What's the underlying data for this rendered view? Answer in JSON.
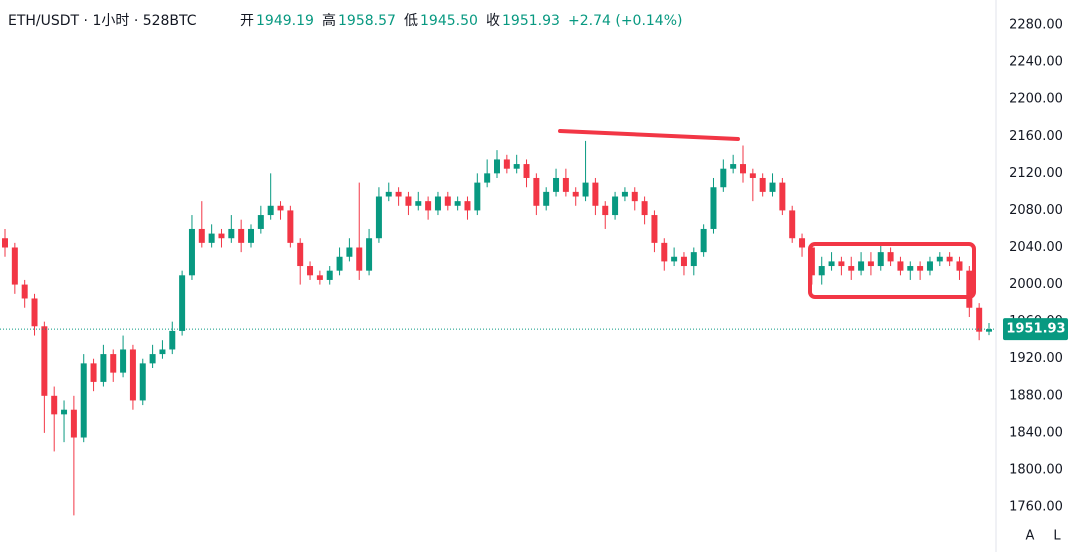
{
  "header": {
    "symbol": "ETH/USDT · 1小时 · 528BTC",
    "open_label": "开",
    "open_value": "1949.19",
    "high_label": "高",
    "high_value": "1958.57",
    "low_label": "低",
    "low_value": "1945.50",
    "close_label": "收",
    "close_value": "1951.93",
    "change": "+2.74 (+0.14%)"
  },
  "scale_buttons": [
    "A",
    "L"
  ],
  "chart_data": {
    "type": "candlestick",
    "up_color": "#089981",
    "down_color": "#f23645",
    "ylim": [
      1711.5,
      2307
    ],
    "yticks": [
      {
        "value": 2280,
        "label": "2280.00"
      },
      {
        "value": 2240,
        "label": "2240.00"
      },
      {
        "value": 2200,
        "label": "2200.00"
      },
      {
        "value": 2160,
        "label": "2160.00"
      },
      {
        "value": 2120,
        "label": "2120.00"
      },
      {
        "value": 2080,
        "label": "2080.00"
      },
      {
        "value": 2040,
        "label": "2040.00"
      },
      {
        "value": 2000,
        "label": "2000.00"
      },
      {
        "value": 1960,
        "label": "1960.00"
      },
      {
        "value": 1920,
        "label": "1920.00"
      },
      {
        "value": 1880,
        "label": "1880.00"
      },
      {
        "value": 1840,
        "label": "1840.00"
      },
      {
        "value": 1800,
        "label": "1800.00"
      },
      {
        "value": 1760,
        "label": "1760.00"
      }
    ],
    "grid": false,
    "open": [
      2050,
      2040,
      2000,
      1985,
      1955,
      1880,
      1860,
      1865,
      1835,
      1915,
      1895,
      1925,
      1905,
      1930,
      1875,
      1915,
      1925,
      1930,
      1950,
      2010,
      2060,
      2045,
      2055,
      2050,
      2060,
      2045,
      2060,
      2075,
      2085,
      2080,
      2045,
      2020,
      2010,
      2005,
      2015,
      2030,
      2040,
      2015,
      2050,
      2095,
      2100,
      2095,
      2085,
      2090,
      2080,
      2095,
      2085,
      2090,
      2080,
      2110,
      2120,
      2135,
      2125,
      2130,
      2115,
      2085,
      2100,
      2115,
      2100,
      2095,
      2110,
      2085,
      2075,
      2095,
      2100,
      2090,
      2075,
      2045,
      2025,
      2030,
      2020,
      2035,
      2060,
      2105,
      2125,
      2130,
      2120,
      2115,
      2100,
      2110,
      2080,
      2050,
      2040,
      2010,
      2020,
      2025,
      2020,
      2015,
      2025,
      2020,
      2035,
      2025,
      2015,
      2020,
      2015,
      2025,
      2030,
      2025,
      2015,
      1975,
      1949.19
    ],
    "high": [
      2060,
      2045,
      2005,
      1990,
      1960,
      1890,
      1875,
      1880,
      1925,
      1920,
      1935,
      1930,
      1945,
      1935,
      1920,
      1935,
      1940,
      1960,
      2015,
      2075,
      2090,
      2065,
      2060,
      2075,
      2070,
      2065,
      2085,
      2120,
      2090,
      2085,
      2050,
      2025,
      2015,
      2020,
      2040,
      2050,
      2110,
      2060,
      2105,
      2110,
      2105,
      2100,
      2100,
      2095,
      2100,
      2100,
      2095,
      2095,
      2120,
      2135,
      2145,
      2140,
      2140,
      2135,
      2120,
      2105,
      2125,
      2125,
      2105,
      2155,
      2115,
      2090,
      2100,
      2105,
      2105,
      2095,
      2080,
      2050,
      2040,
      2035,
      2040,
      2065,
      2115,
      2135,
      2140,
      2150,
      2125,
      2120,
      2120,
      2115,
      2085,
      2055,
      2045,
      2030,
      2035,
      2030,
      2030,
      2035,
      2035,
      2045,
      2040,
      2030,
      2025,
      2025,
      2030,
      2035,
      2035,
      2030,
      2020,
      1980,
      1958.57
    ],
    "low": [
      2030,
      1990,
      1975,
      1945,
      1840,
      1820,
      1830,
      1751,
      1830,
      1885,
      1890,
      1895,
      1900,
      1865,
      1870,
      1910,
      1920,
      1925,
      1945,
      2005,
      2040,
      2040,
      2040,
      2045,
      2035,
      2040,
      2055,
      2070,
      2070,
      2040,
      2000,
      2005,
      2000,
      2000,
      2010,
      2025,
      2005,
      2010,
      2045,
      2090,
      2085,
      2075,
      2080,
      2070,
      2075,
      2080,
      2080,
      2070,
      2075,
      2105,
      2115,
      2120,
      2120,
      2105,
      2075,
      2080,
      2095,
      2095,
      2085,
      2090,
      2075,
      2060,
      2070,
      2090,
      2080,
      2065,
      2035,
      2015,
      2020,
      2010,
      2010,
      2030,
      2055,
      2100,
      2120,
      2110,
      2090,
      2095,
      2095,
      2075,
      2045,
      2030,
      2000,
      2000,
      2015,
      2010,
      2005,
      2010,
      2010,
      2015,
      2020,
      2010,
      2005,
      2005,
      2010,
      2020,
      2020,
      2005,
      1965,
      1940,
      1945.5
    ],
    "close": [
      2040,
      2000,
      1985,
      1955,
      1880,
      1860,
      1865,
      1835,
      1915,
      1895,
      1925,
      1905,
      1930,
      1875,
      1915,
      1925,
      1930,
      1950,
      2010,
      2060,
      2045,
      2055,
      2050,
      2060,
      2045,
      2060,
      2075,
      2085,
      2080,
      2045,
      2020,
      2010,
      2005,
      2015,
      2030,
      2040,
      2015,
      2050,
      2095,
      2100,
      2095,
      2085,
      2090,
      2080,
      2095,
      2085,
      2090,
      2080,
      2110,
      2120,
      2135,
      2125,
      2130,
      2115,
      2085,
      2100,
      2115,
      2100,
      2095,
      2110,
      2085,
      2075,
      2095,
      2100,
      2090,
      2075,
      2045,
      2025,
      2030,
      2020,
      2035,
      2060,
      2105,
      2125,
      2130,
      2120,
      2115,
      2100,
      2110,
      2080,
      2050,
      2040,
      2010,
      2020,
      2025,
      2020,
      2015,
      2025,
      2020,
      2035,
      2025,
      2015,
      2020,
      2015,
      2025,
      2030,
      2025,
      2015,
      1975,
      1949.19,
      1951.93
    ]
  }
}
